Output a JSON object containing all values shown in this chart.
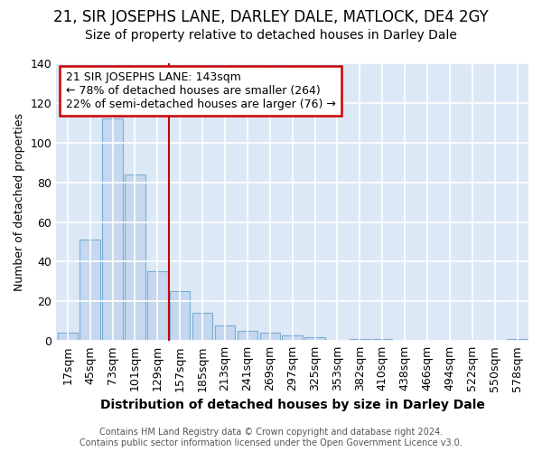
{
  "title1": "21, SIR JOSEPHS LANE, DARLEY DALE, MATLOCK, DE4 2GY",
  "title2": "Size of property relative to detached houses in Darley Dale",
  "xlabel": "Distribution of detached houses by size in Darley Dale",
  "ylabel": "Number of detached properties",
  "footnote": "Contains HM Land Registry data © Crown copyright and database right 2024.\nContains public sector information licensed under the Open Government Licence v3.0.",
  "bar_labels": [
    "17sqm",
    "45sqm",
    "73sqm",
    "101sqm",
    "129sqm",
    "157sqm",
    "185sqm",
    "213sqm",
    "241sqm",
    "269sqm",
    "297sqm",
    "325sqm",
    "353sqm",
    "382sqm",
    "410sqm",
    "438sqm",
    "466sqm",
    "494sqm",
    "522sqm",
    "550sqm",
    "578sqm"
  ],
  "bar_values": [
    4,
    51,
    112,
    84,
    35,
    25,
    14,
    8,
    5,
    4,
    3,
    2,
    0,
    1,
    1,
    0,
    0,
    0,
    0,
    0,
    1
  ],
  "bar_color": "#c5d8ef",
  "bar_edge_color": "#7aadd4",
  "annotation_text": "21 SIR JOSEPHS LANE: 143sqm\n← 78% of detached houses are smaller (264)\n22% of semi-detached houses are larger (76) →",
  "annotation_box_color": "#ffffff",
  "annotation_box_edge_color": "#cc0000",
  "property_line_x": 4.5,
  "property_line_color": "#cc0000",
  "ylim": [
    0,
    140
  ],
  "yticks": [
    0,
    20,
    40,
    60,
    80,
    100,
    120,
    140
  ],
  "figure_bg_color": "#ffffff",
  "plot_bg_color": "#dce8f5",
  "grid_color": "#ffffff",
  "title1_fontsize": 12,
  "title2_fontsize": 10,
  "xlabel_fontsize": 10,
  "ylabel_fontsize": 9,
  "tick_fontsize": 9,
  "annotation_fontsize": 9,
  "footnote_fontsize": 7
}
